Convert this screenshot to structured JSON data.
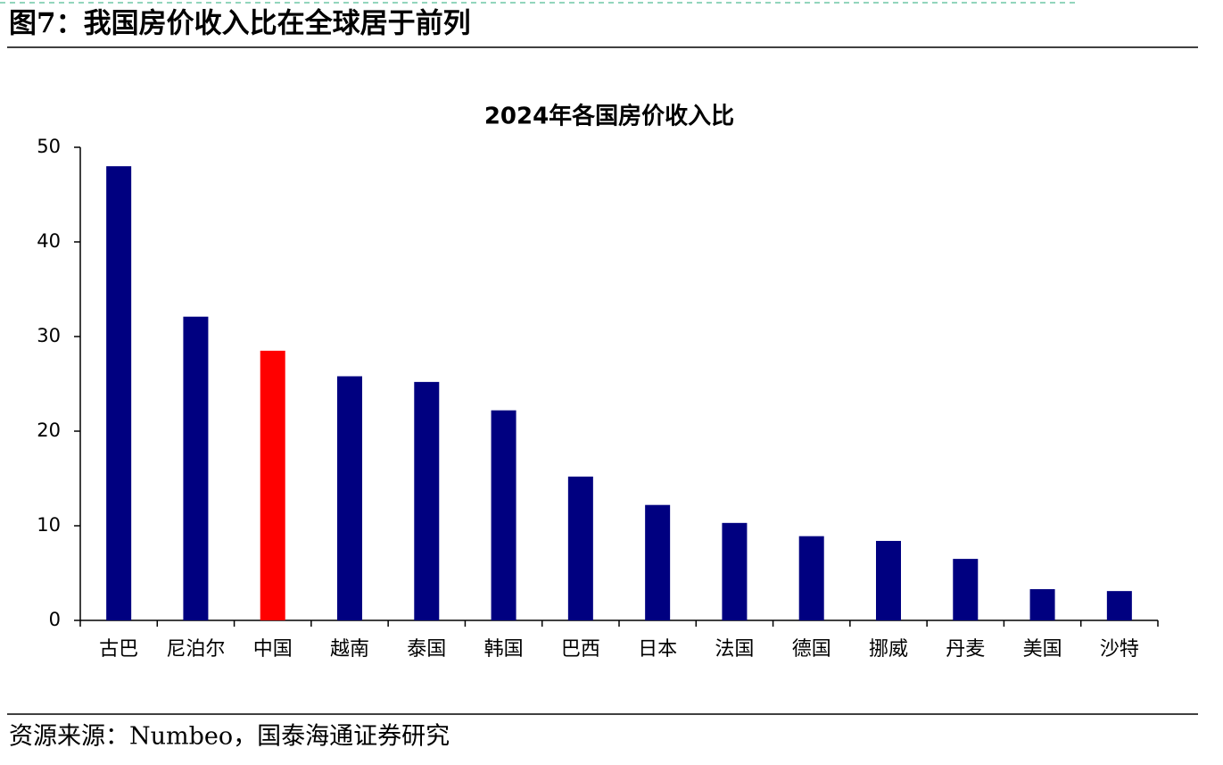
{
  "header": {
    "title": "图7：我国房价收入比在全球居于前列"
  },
  "chart_data": {
    "type": "bar",
    "title": "2024年各国房价收入比",
    "categories": [
      "古巴",
      "尼泊尔",
      "中国",
      "越南",
      "泰国",
      "韩国",
      "巴西",
      "日本",
      "法国",
      "德国",
      "挪威",
      "丹麦",
      "美国",
      "沙特"
    ],
    "values": [
      48,
      32.1,
      28.5,
      25.8,
      25.2,
      22.2,
      15.2,
      12.2,
      10.3,
      8.9,
      8.4,
      6.5,
      3.3,
      3.1
    ],
    "colors": [
      "#000080",
      "#000080",
      "#ff0000",
      "#000080",
      "#000080",
      "#000080",
      "#000080",
      "#000080",
      "#000080",
      "#000080",
      "#000080",
      "#000080",
      "#000080",
      "#000080"
    ],
    "ylim": [
      0,
      50
    ],
    "yticks": [
      0,
      10,
      20,
      30,
      40,
      50
    ],
    "grid": false
  },
  "footer": {
    "source": "资源来源：Numbeo，国泰海通证券研究"
  }
}
